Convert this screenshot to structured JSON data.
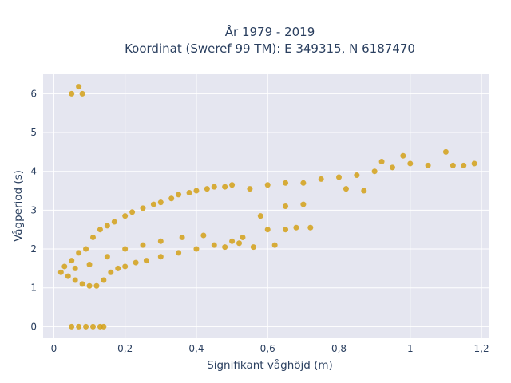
{
  "chart_data": {
    "type": "scatter",
    "title_line1": "År 1979 - 2019",
    "title_line2": "Koordinat (Sweref 99 TM): E 349315, N 6187470",
    "xlabel": "Signifikant våghöjd (m)",
    "ylabel": "Vågperiod (s)",
    "xlim": [
      -0.03,
      1.22
    ],
    "ylim": [
      -0.3,
      6.5
    ],
    "x_ticks": [
      0,
      0.2,
      0.4,
      0.6,
      0.8,
      1,
      1.2
    ],
    "x_tick_labels": [
      "0",
      "0,2",
      "0,4",
      "0,6",
      "0,8",
      "1",
      "1,2"
    ],
    "y_ticks": [
      0,
      1,
      2,
      3,
      4,
      5,
      6
    ],
    "y_tick_labels": [
      "0",
      "1",
      "2",
      "3",
      "4",
      "5",
      "6"
    ],
    "grid": true,
    "legend": "none",
    "colors": {
      "marker": "#d4a017",
      "plot_bg": "#e5e6f0",
      "grid": "#ffffff",
      "text": "#2a3f5f"
    },
    "series": [
      {
        "values": [
          [
            0.05,
            6.0
          ],
          [
            0.07,
            6.18
          ],
          [
            0.08,
            6.0
          ],
          [
            0.05,
            0.0
          ],
          [
            0.07,
            0.0
          ],
          [
            0.09,
            0.0
          ],
          [
            0.11,
            0.0
          ],
          [
            0.13,
            0.0
          ],
          [
            0.14,
            0.0
          ],
          [
            0.02,
            1.4
          ],
          [
            0.03,
            1.55
          ],
          [
            0.04,
            1.3
          ],
          [
            0.05,
            1.7
          ],
          [
            0.06,
            1.2
          ],
          [
            0.07,
            1.9
          ],
          [
            0.08,
            1.1
          ],
          [
            0.09,
            2.0
          ],
          [
            0.1,
            1.05
          ],
          [
            0.11,
            2.3
          ],
          [
            0.12,
            1.05
          ],
          [
            0.13,
            2.5
          ],
          [
            0.14,
            1.2
          ],
          [
            0.15,
            2.6
          ],
          [
            0.16,
            1.4
          ],
          [
            0.17,
            2.7
          ],
          [
            0.18,
            1.5
          ],
          [
            0.2,
            2.85
          ],
          [
            0.2,
            1.55
          ],
          [
            0.22,
            2.95
          ],
          [
            0.23,
            1.65
          ],
          [
            0.25,
            3.05
          ],
          [
            0.26,
            1.7
          ],
          [
            0.28,
            3.15
          ],
          [
            0.3,
            1.8
          ],
          [
            0.3,
            3.2
          ],
          [
            0.33,
            3.3
          ],
          [
            0.35,
            1.9
          ],
          [
            0.35,
            3.4
          ],
          [
            0.38,
            3.45
          ],
          [
            0.4,
            2.0
          ],
          [
            0.4,
            3.5
          ],
          [
            0.43,
            3.55
          ],
          [
            0.45,
            2.1
          ],
          [
            0.45,
            3.6
          ],
          [
            0.48,
            3.6
          ],
          [
            0.5,
            2.2
          ],
          [
            0.5,
            3.65
          ],
          [
            0.53,
            2.3
          ],
          [
            0.55,
            3.55
          ],
          [
            0.6,
            3.65
          ],
          [
            0.6,
            2.5
          ],
          [
            0.65,
            3.7
          ],
          [
            0.65,
            2.5
          ],
          [
            0.7,
            3.7
          ],
          [
            0.75,
            3.8
          ],
          [
            0.8,
            3.85
          ],
          [
            0.85,
            3.9
          ],
          [
            0.9,
            4.0
          ],
          [
            0.95,
            4.1
          ],
          [
            1.0,
            4.2
          ],
          [
            1.05,
            4.15
          ],
          [
            1.1,
            4.5
          ],
          [
            1.12,
            4.15
          ],
          [
            1.15,
            4.15
          ],
          [
            1.18,
            4.2
          ],
          [
            0.98,
            4.4
          ],
          [
            0.92,
            4.25
          ],
          [
            0.87,
            3.5
          ],
          [
            0.82,
            3.55
          ],
          [
            0.7,
            3.15
          ],
          [
            0.65,
            3.1
          ],
          [
            0.58,
            2.85
          ],
          [
            0.52,
            2.15
          ],
          [
            0.48,
            2.05
          ],
          [
            0.42,
            2.35
          ],
          [
            0.36,
            2.3
          ],
          [
            0.3,
            2.2
          ],
          [
            0.25,
            2.1
          ],
          [
            0.2,
            2.0
          ],
          [
            0.15,
            1.8
          ],
          [
            0.1,
            1.6
          ],
          [
            0.06,
            1.5
          ],
          [
            0.62,
            2.1
          ],
          [
            0.56,
            2.05
          ],
          [
            0.68,
            2.55
          ],
          [
            0.72,
            2.55
          ]
        ]
      }
    ]
  }
}
